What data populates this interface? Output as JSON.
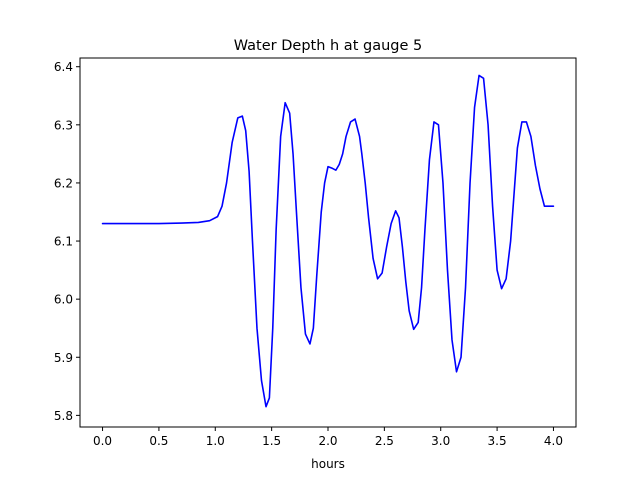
{
  "chart_data": {
    "type": "line",
    "title": "Water Depth h at gauge 5",
    "xlabel": "hours",
    "ylabel": "",
    "xlim": [
      -0.2,
      4.2
    ],
    "ylim": [
      5.78,
      6.415
    ],
    "xticks": [
      0.0,
      0.5,
      1.0,
      1.5,
      2.0,
      2.5,
      3.0,
      3.5,
      4.0
    ],
    "yticks": [
      5.8,
      5.9,
      6.0,
      6.1,
      6.2,
      6.3,
      6.4
    ],
    "xtick_labels": [
      "0.0",
      "0.5",
      "1.0",
      "1.5",
      "2.0",
      "2.5",
      "3.0",
      "3.5",
      "4.0"
    ],
    "ytick_labels": [
      "5.8",
      "5.9",
      "6.0",
      "6.1",
      "6.2",
      "6.3",
      "6.4"
    ],
    "grid": false,
    "series": [
      {
        "name": "",
        "color": "#0000ff",
        "x": [
          0.0,
          0.3,
          0.5,
          0.7,
          0.85,
          0.95,
          1.02,
          1.06,
          1.1,
          1.15,
          1.2,
          1.24,
          1.27,
          1.3,
          1.33,
          1.37,
          1.41,
          1.45,
          1.48,
          1.51,
          1.54,
          1.58,
          1.62,
          1.66,
          1.69,
          1.72,
          1.76,
          1.8,
          1.84,
          1.87,
          1.9,
          1.94,
          1.97,
          2.0,
          2.04,
          2.07,
          2.1,
          2.13,
          2.16,
          2.2,
          2.24,
          2.28,
          2.3,
          2.33,
          2.36,
          2.4,
          2.44,
          2.48,
          2.52,
          2.56,
          2.6,
          2.63,
          2.66,
          2.69,
          2.72,
          2.76,
          2.8,
          2.83,
          2.86,
          2.9,
          2.94,
          2.98,
          3.02,
          3.06,
          3.1,
          3.14,
          3.18,
          3.22,
          3.26,
          3.3,
          3.34,
          3.38,
          3.42,
          3.46,
          3.5,
          3.54,
          3.58,
          3.62,
          3.65,
          3.68,
          3.72,
          3.76,
          3.8,
          3.84,
          3.88,
          3.92,
          3.96,
          4.0
        ],
        "y": [
          6.13,
          6.13,
          6.13,
          6.131,
          6.132,
          6.135,
          6.142,
          6.16,
          6.2,
          6.27,
          6.312,
          6.315,
          6.29,
          6.22,
          6.1,
          5.95,
          5.86,
          5.815,
          5.83,
          5.95,
          6.12,
          6.28,
          6.338,
          6.32,
          6.25,
          6.15,
          6.02,
          5.94,
          5.923,
          5.95,
          6.04,
          6.15,
          6.2,
          6.228,
          6.225,
          6.222,
          6.232,
          6.25,
          6.28,
          6.305,
          6.31,
          6.28,
          6.25,
          6.2,
          6.14,
          6.07,
          6.035,
          6.045,
          6.09,
          6.13,
          6.152,
          6.14,
          6.09,
          6.03,
          5.98,
          5.948,
          5.96,
          6.02,
          6.12,
          6.24,
          6.305,
          6.3,
          6.2,
          6.05,
          5.93,
          5.875,
          5.9,
          6.02,
          6.2,
          6.33,
          6.385,
          6.38,
          6.3,
          6.16,
          6.05,
          6.018,
          6.035,
          6.1,
          6.18,
          6.26,
          6.305,
          6.305,
          6.28,
          6.23,
          6.19,
          6.16,
          6.16,
          6.16
        ]
      }
    ]
  }
}
